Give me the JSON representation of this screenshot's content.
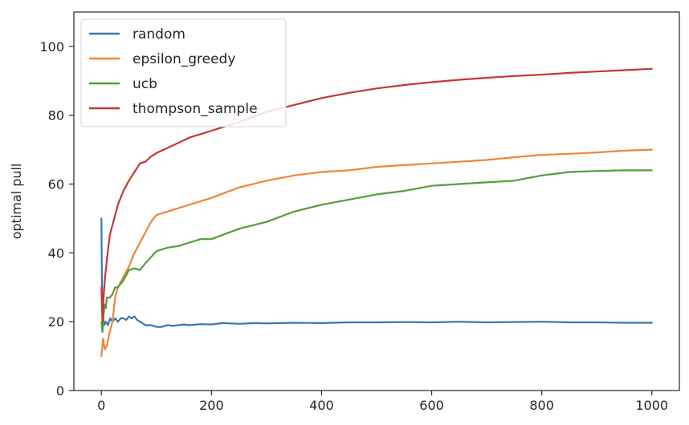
{
  "chart_data": {
    "type": "line",
    "title": "",
    "xlabel": "",
    "ylabel": "optimal pull",
    "xlim": [
      -50,
      1050
    ],
    "ylim": [
      0,
      110
    ],
    "xticks": [
      0,
      200,
      400,
      600,
      800,
      1000
    ],
    "yticks": [
      0,
      20,
      40,
      60,
      80,
      100
    ],
    "grid": false,
    "legend_position": "top-left",
    "series": [
      {
        "name": "random",
        "color": "#3b75af",
        "x": [
          0,
          1,
          3,
          5,
          8,
          12,
          16,
          20,
          25,
          30,
          35,
          40,
          45,
          50,
          55,
          60,
          65,
          70,
          75,
          80,
          90,
          100,
          110,
          120,
          130,
          140,
          150,
          160,
          180,
          200,
          220,
          250,
          280,
          300,
          350,
          400,
          450,
          500,
          550,
          600,
          650,
          700,
          750,
          800,
          850,
          900,
          950,
          1000
        ],
        "y": [
          50,
          30,
          22,
          19,
          20,
          19,
          21,
          20,
          21,
          20,
          21,
          21,
          20.5,
          21.5,
          21,
          21.5,
          20.5,
          20,
          19.5,
          19,
          19,
          18.5,
          18.5,
          19,
          18.8,
          19,
          19.2,
          19,
          19.3,
          19.2,
          19.6,
          19.4,
          19.6,
          19.5,
          19.7,
          19.6,
          19.8,
          19.8,
          19.9,
          19.8,
          20.0,
          19.8,
          19.9,
          20.0,
          19.8,
          19.8,
          19.7,
          19.7
        ]
      },
      {
        "name": "epsilon_greedy",
        "color": "#ef8636",
        "x": [
          0,
          3,
          6,
          10,
          15,
          20,
          25,
          30,
          40,
          50,
          60,
          70,
          80,
          90,
          100,
          110,
          120,
          140,
          160,
          180,
          200,
          250,
          300,
          350,
          400,
          450,
          500,
          550,
          600,
          650,
          700,
          750,
          800,
          850,
          900,
          950,
          1000
        ],
        "y": [
          10,
          15,
          12,
          13,
          17,
          20,
          27,
          30,
          33,
          36,
          40,
          43,
          46,
          49,
          51,
          51.5,
          52,
          53,
          54,
          55,
          56,
          59,
          61,
          62.5,
          63.5,
          64,
          65,
          65.5,
          66,
          66.5,
          67,
          67.8,
          68.5,
          68.8,
          69.2,
          69.7,
          70
        ]
      },
      {
        "name": "ucb",
        "color": "#519e3e",
        "x": [
          0,
          2,
          4,
          6,
          8,
          10,
          15,
          20,
          25,
          30,
          40,
          50,
          60,
          70,
          80,
          100,
          120,
          140,
          160,
          180,
          200,
          250,
          300,
          350,
          400,
          450,
          500,
          550,
          600,
          650,
          700,
          750,
          800,
          850,
          900,
          950,
          1000
        ],
        "y": [
          20,
          17,
          22,
          25,
          24,
          27,
          27,
          28,
          30,
          30,
          32,
          35,
          35.5,
          35,
          37,
          40.5,
          41.5,
          42,
          43,
          44,
          44,
          47,
          49,
          52,
          54,
          55.5,
          57,
          58,
          59.5,
          60,
          60.5,
          61,
          62.5,
          63.5,
          63.8,
          64,
          64
        ]
      },
      {
        "name": "thompson_sample",
        "color": "#c53932",
        "x": [
          0,
          2,
          4,
          6,
          8,
          10,
          15,
          20,
          25,
          30,
          40,
          50,
          60,
          70,
          80,
          90,
          100,
          120,
          140,
          160,
          180,
          200,
          250,
          300,
          350,
          400,
          450,
          500,
          550,
          600,
          650,
          700,
          750,
          800,
          850,
          900,
          950,
          1000
        ],
        "y": [
          30,
          20,
          27,
          32,
          35,
          38,
          45,
          48,
          51,
          54,
          58,
          61,
          63.5,
          66,
          66.5,
          68,
          69,
          70.5,
          72,
          73.5,
          74.5,
          75.5,
          78,
          81,
          83,
          85,
          86.5,
          87.8,
          88.8,
          89.6,
          90.3,
          90.9,
          91.4,
          91.8,
          92.3,
          92.7,
          93.1,
          93.5
        ]
      }
    ]
  }
}
